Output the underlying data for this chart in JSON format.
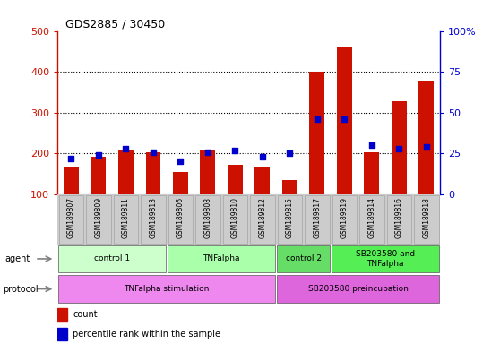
{
  "title": "GDS2885 / 30450",
  "samples": [
    "GSM189807",
    "GSM189809",
    "GSM189811",
    "GSM189813",
    "GSM189806",
    "GSM189808",
    "GSM189810",
    "GSM189812",
    "GSM189815",
    "GSM189817",
    "GSM189819",
    "GSM189814",
    "GSM189816",
    "GSM189818"
  ],
  "counts": [
    168,
    193,
    210,
    202,
    155,
    210,
    172,
    168,
    135,
    400,
    462,
    202,
    328,
    378
  ],
  "percentiles": [
    22,
    24,
    28,
    26,
    20,
    26,
    27,
    23,
    25,
    46,
    46,
    30,
    28,
    29
  ],
  "ymin": 100,
  "ymax": 500,
  "agent_groups": [
    {
      "label": "control 1",
      "start": 0,
      "end": 4,
      "color": "#ccffcc"
    },
    {
      "label": "TNFalpha",
      "start": 4,
      "end": 8,
      "color": "#aaffaa"
    },
    {
      "label": "control 2",
      "start": 8,
      "end": 10,
      "color": "#66dd66"
    },
    {
      "label": "SB203580 and\nTNFalpha",
      "start": 10,
      "end": 14,
      "color": "#55ee55"
    }
  ],
  "protocol_groups": [
    {
      "label": "TNFalpha stimulation",
      "start": 0,
      "end": 8,
      "color": "#ee88ee"
    },
    {
      "label": "SB203580 preincubation",
      "start": 8,
      "end": 14,
      "color": "#dd66dd"
    }
  ],
  "bar_color": "#cc1100",
  "dot_color": "#0000cc",
  "left_axis_color": "#cc1100",
  "right_axis_color": "#0000cc",
  "xtick_bg": "#cccccc",
  "grid_color": "black",
  "legend_count_color": "#cc1100",
  "legend_dot_color": "#0000cc"
}
